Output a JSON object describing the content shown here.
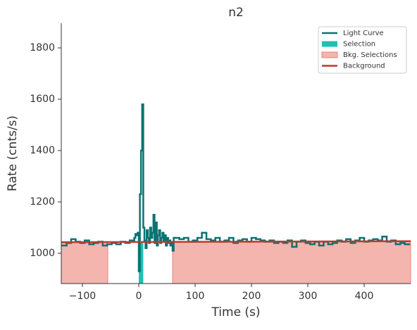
{
  "chart_data": {
    "type": "step",
    "title": "n2",
    "xlabel": "Time (s)",
    "ylabel": "Rate (cnts/s)",
    "xlim": [
      -137.5,
      482.5
    ],
    "ylim": [
      882,
      1896
    ],
    "xticks": [
      {
        "value": -100,
        "label": "−100"
      },
      0,
      100,
      200,
      300,
      400
    ],
    "yticks": [
      1000,
      1200,
      1400,
      1600,
      1800
    ],
    "legend": "upper right",
    "light_curve": {
      "name": "Light Curve",
      "color": "#0b7373",
      "bins": [
        -136,
        -128,
        -120,
        -112,
        -104,
        -96,
        -88,
        -80,
        -72,
        -64,
        -56,
        -48,
        -40,
        -32,
        -24,
        -16,
        -8,
        -6,
        -4,
        -2,
        0,
        2,
        4,
        6,
        8,
        10,
        12,
        14,
        16,
        18,
        20,
        22,
        24,
        26,
        28,
        30,
        32,
        34,
        36,
        38,
        40,
        42,
        44,
        46,
        48,
        50,
        52,
        54,
        56,
        58,
        60,
        62,
        64,
        72,
        80,
        88,
        96,
        104,
        112,
        120,
        128,
        136,
        144,
        152,
        160,
        168,
        176,
        184,
        192,
        200,
        208,
        216,
        224,
        232,
        240,
        248,
        256,
        264,
        272,
        280,
        288,
        296,
        304,
        312,
        320,
        328,
        336,
        344,
        352,
        360,
        368,
        376,
        384,
        392,
        400,
        408,
        416,
        424,
        432,
        440,
        448,
        456,
        464,
        472,
        480
      ],
      "values": [
        1030,
        1040,
        1055,
        1045,
        1040,
        1050,
        1035,
        1040,
        1045,
        1030,
        1035,
        1040,
        1035,
        1045,
        1040,
        1050,
        1060,
        1075,
        1070,
        1080,
        930,
        1230,
        1400,
        1580,
        1100,
        1050,
        1020,
        1090,
        1060,
        1040,
        1100,
        1060,
        1080,
        1150,
        1040,
        1120,
        1030,
        1070,
        1090,
        1040,
        1060,
        1080,
        1050,
        1070,
        1030,
        1060,
        1040,
        1050,
        1030,
        1040,
        1010,
        1060,
        1060,
        1055,
        1060,
        1045,
        1050,
        1060,
        1080,
        1055,
        1050,
        1060,
        1045,
        1050,
        1060,
        1040,
        1050,
        1055,
        1045,
        1060,
        1055,
        1050,
        1045,
        1050,
        1040,
        1045,
        1040,
        1050,
        1025,
        1045,
        1050,
        1040,
        1035,
        1045,
        1030,
        1045,
        1035,
        1040,
        1050,
        1045,
        1055,
        1040,
        1050,
        1060,
        1045,
        1050,
        1055,
        1050,
        1065,
        1045,
        1050,
        1035,
        1040,
        1035
      ]
    },
    "selection": {
      "name": "Selection",
      "color": "#20c0b2",
      "ranges": [
        [
          0,
          8
        ]
      ]
    },
    "bkg_selections": {
      "name": "Bkg. Selections",
      "color": "#f4b5af",
      "edge": "#e8847a",
      "ranges": [
        [
          -137.5,
          -55
        ],
        [
          60,
          482.5
        ]
      ]
    },
    "background": {
      "name": "Background",
      "color": "#c0392b",
      "x": [
        -137.5,
        482.5
      ],
      "values": [
        1043,
        1047
      ]
    }
  }
}
